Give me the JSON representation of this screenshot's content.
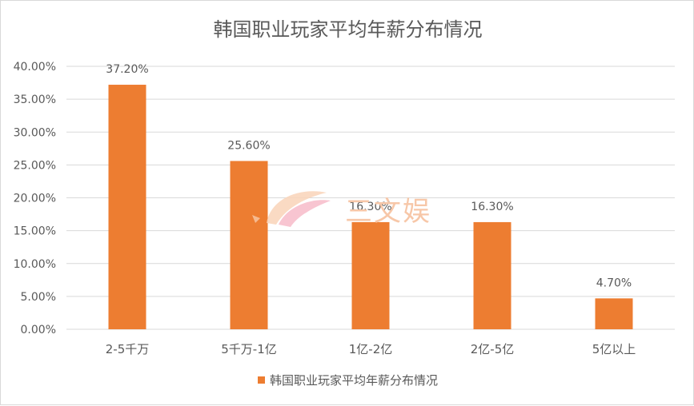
{
  "chart_data": {
    "type": "bar",
    "title": "韩国职业玩家平均年薪分布情况",
    "categories": [
      "2-5千万",
      "5千万-1亿",
      "1亿-2亿",
      "2亿-5亿",
      "5亿以上"
    ],
    "series": [
      {
        "name": "韩国职业玩家平均年薪分布情况",
        "values": [
          37.2,
          25.6,
          16.3,
          16.3,
          4.7
        ],
        "data_labels": [
          "37.20%",
          "25.60%",
          "16.30%",
          "16.30%",
          "4.70%"
        ]
      }
    ],
    "ylim": [
      0,
      40
    ],
    "yticks": [
      "0.00%",
      "5.00%",
      "10.00%",
      "15.00%",
      "20.00%",
      "25.00%",
      "30.00%",
      "35.00%",
      "40.00%"
    ],
    "xlabel": "",
    "ylabel": "",
    "grid": true,
    "legend_position": "bottom",
    "colors": {
      "bar": "#ed7d31",
      "grid": "#d9d9d9",
      "text": "#595959"
    }
  },
  "watermark": {
    "text": "三文娱"
  }
}
